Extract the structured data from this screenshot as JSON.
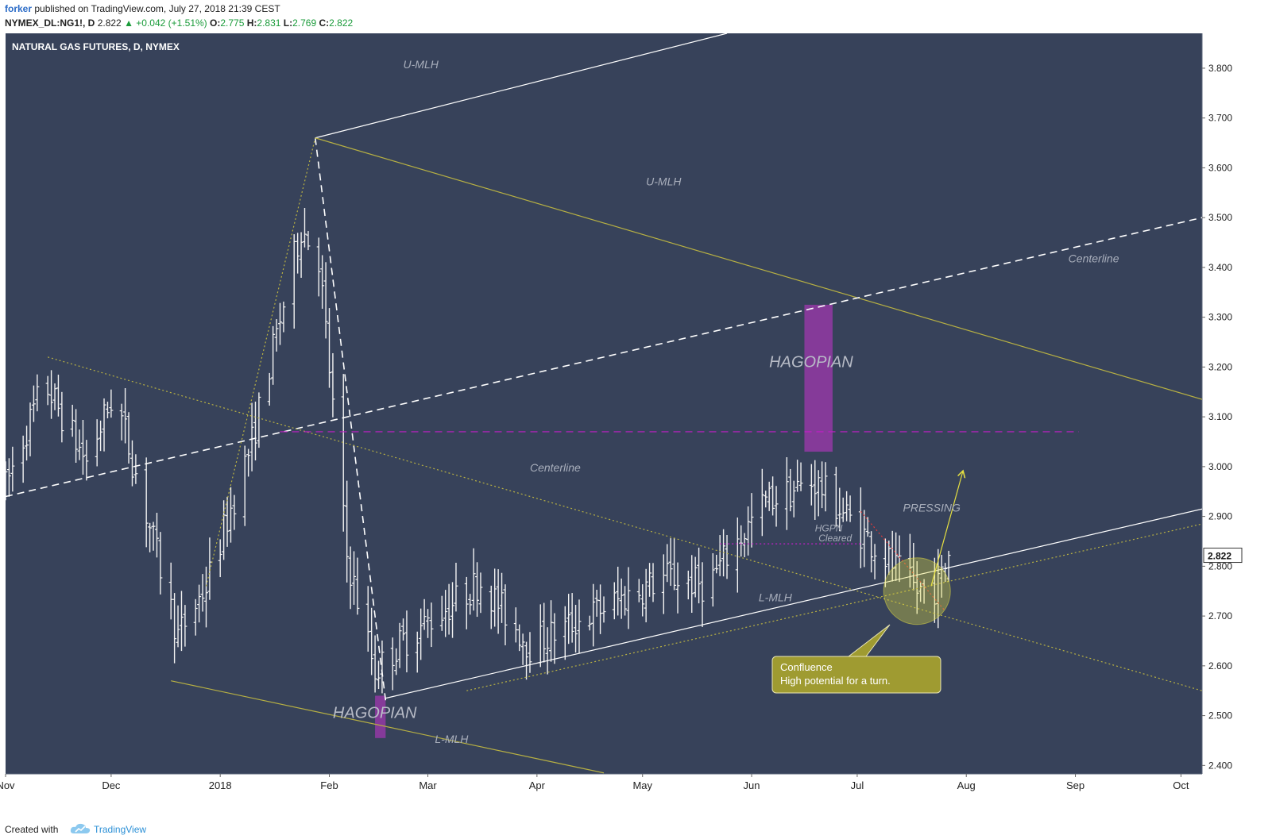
{
  "header": {
    "author": "forker",
    "published": "published on TradingView.com, July 27, 2018 21:39 CEST",
    "symbol": "NYMEX_DL:NG1!, D",
    "last": "2.822",
    "change": "▲ +0.042 (+1.51%)",
    "open_label": "O:",
    "open": "2.775",
    "high_label": "H:",
    "high": "2.831",
    "low_label": "L:",
    "low": "2.769",
    "close_label": "C:",
    "close": "2.822"
  },
  "footer": {
    "created_with": "Created with",
    "brand": "TradingView"
  },
  "colors": {
    "background": "#37425a",
    "bars": "#f2f2f2",
    "olive": "#b7b043",
    "purple": "#8e3aa0",
    "magenta": "#c21fc8",
    "red": "#e03a3a",
    "yellow": "#e6e041",
    "callout": "#9f9b31"
  },
  "chart_data": {
    "type": "ohlc",
    "title": "NATURAL GAS FUTURES, D, NYMEX",
    "x_ticks": [
      "Nov",
      "Dec",
      "2018",
      "Feb",
      "Mar",
      "Apr",
      "May",
      "Jun",
      "Jul",
      "Aug",
      "Sep",
      "Oct"
    ],
    "x_tick_dates": [
      "2017-11-01",
      "2017-12-01",
      "2018-01-01",
      "2018-02-01",
      "2018-03-01",
      "2018-04-01",
      "2018-05-01",
      "2018-06-01",
      "2018-07-01",
      "2018-08-01",
      "2018-09-01",
      "2018-10-01"
    ],
    "x_range": [
      "2017-11-01",
      "2018-10-07"
    ],
    "y_ticks": [
      "2.400",
      "2.500",
      "2.600",
      "2.700",
      "2.800",
      "2.900",
      "3.000",
      "3.100",
      "3.200",
      "3.300",
      "3.400",
      "3.500",
      "3.600",
      "3.700",
      "3.800"
    ],
    "ylim": [
      2.383,
      3.87
    ],
    "last_price_label": "2.822",
    "grid": false,
    "anchors": [
      {
        "date": "2017-11-01",
        "price": 2.96
      },
      {
        "date": "2017-11-12",
        "price": 3.17
      },
      {
        "date": "2017-11-24",
        "price": 3.01
      },
      {
        "date": "2017-12-02",
        "price": 3.15
      },
      {
        "date": "2017-12-20",
        "price": 2.66
      },
      {
        "date": "2017-12-28",
        "price": 2.76
      },
      {
        "date": "2018-01-10",
        "price": 3.05
      },
      {
        "date": "2018-01-24",
        "price": 3.48
      },
      {
        "date": "2018-01-29",
        "price": 3.42
      },
      {
        "date": "2018-02-06",
        "price": 2.82
      },
      {
        "date": "2018-02-14",
        "price": 2.59
      },
      {
        "date": "2018-02-22",
        "price": 2.65
      },
      {
        "date": "2018-03-16",
        "price": 2.77
      },
      {
        "date": "2018-03-30",
        "price": 2.64
      },
      {
        "date": "2018-04-18",
        "price": 2.71
      },
      {
        "date": "2018-05-08",
        "price": 2.78
      },
      {
        "date": "2018-05-19",
        "price": 2.76
      },
      {
        "date": "2018-06-05",
        "price": 2.93
      },
      {
        "date": "2018-06-19",
        "price": 2.97
      },
      {
        "date": "2018-07-02",
        "price": 2.87
      },
      {
        "date": "2018-07-18",
        "price": 2.75
      },
      {
        "date": "2018-07-24",
        "price": 2.76
      },
      {
        "date": "2018-07-27",
        "price": 2.822
      }
    ],
    "lines": [
      {
        "style": "solid",
        "color": "white",
        "from": {
          "date": "2018-01-28",
          "price": 3.66
        },
        "to": {
          "date": "2018-05-25",
          "price": 3.87
        }
      },
      {
        "style": "solid",
        "color": "olive",
        "from": {
          "date": "2018-01-28",
          "price": 3.66
        },
        "to": {
          "date": "2018-10-07",
          "price": 3.135
        }
      },
      {
        "style": "dashed",
        "color": "white",
        "from": {
          "date": "2017-11-01",
          "price": 2.94
        },
        "to": {
          "date": "2018-10-07",
          "price": 3.5
        }
      },
      {
        "style": "dashed",
        "color": "white",
        "from": {
          "date": "2018-01-28",
          "price": 3.66
        },
        "to": {
          "date": "2018-02-17",
          "price": 2.53
        }
      },
      {
        "style": "dotted",
        "color": "olive",
        "from": {
          "date": "2017-11-13",
          "price": 3.22
        },
        "to": {
          "date": "2018-10-07",
          "price": 2.55
        }
      },
      {
        "style": "dotted",
        "color": "olive",
        "from": {
          "date": "2017-12-28",
          "price": 2.76
        },
        "to": {
          "date": "2018-01-28",
          "price": 3.66
        }
      },
      {
        "style": "solid",
        "color": "olive",
        "from": {
          "date": "2017-12-18",
          "price": 2.57
        },
        "to": {
          "date": "2018-04-20",
          "price": 2.385
        }
      },
      {
        "style": "solid",
        "color": "white",
        "from": {
          "date": "2018-02-17",
          "price": 2.535
        },
        "to": {
          "date": "2018-10-07",
          "price": 2.915
        }
      },
      {
        "style": "dotted",
        "color": "olive",
        "from": {
          "date": "2018-03-12",
          "price": 2.55
        },
        "to": {
          "date": "2018-10-07",
          "price": 2.885
        }
      },
      {
        "style": "dashed",
        "color": "magenta",
        "from": {
          "date": "2018-01-18",
          "price": 3.07
        },
        "to": {
          "date": "2018-09-02",
          "price": 3.07
        }
      },
      {
        "style": "dotted",
        "color": "magenta",
        "from": {
          "date": "2018-05-23",
          "price": 2.845
        },
        "to": {
          "date": "2018-07-02",
          "price": 2.845
        }
      },
      {
        "style": "dotted",
        "color": "red",
        "from": {
          "date": "2018-07-02",
          "price": 2.91
        },
        "to": {
          "date": "2018-07-26",
          "price": 2.71
        }
      },
      {
        "style": "arrow",
        "color": "yellow",
        "from": {
          "date": "2018-07-22",
          "price": 2.76
        },
        "to": {
          "date": "2018-07-31",
          "price": 2.99
        }
      }
    ],
    "zones": [
      {
        "color": "purple",
        "from": "2018-06-16",
        "to": "2018-06-24",
        "low": 3.03,
        "high": 3.325
      },
      {
        "color": "purple",
        "from": "2018-02-14",
        "to": "2018-02-17",
        "low": 2.455,
        "high": 2.54
      }
    ],
    "circle": {
      "date": "2018-07-18",
      "price": 2.75
    },
    "annotations": [
      {
        "text": "U-MLH",
        "date": "2018-02-22",
        "price": 3.8
      },
      {
        "text": "U-MLH",
        "date": "2018-05-02",
        "price": 3.565
      },
      {
        "text": "Centerline",
        "date": "2018-08-30",
        "price": 3.41
      },
      {
        "text": "Centerline",
        "date": "2018-03-30",
        "price": 2.99
      },
      {
        "text": "HAGOPIAN",
        "date": "2018-06-06",
        "price": 3.2
      },
      {
        "text": "HAGOPIAN",
        "date": "2018-02-02",
        "price": 2.495
      },
      {
        "text": "PRESSING",
        "date": "2018-07-14",
        "price": 2.91
      },
      {
        "text": "HGPN",
        "date": "2018-06-19",
        "price": 2.87
      },
      {
        "text": "Cleared",
        "date": "2018-06-20",
        "price": 2.85
      },
      {
        "text": "L-MLH",
        "date": "2018-06-03",
        "price": 2.73
      },
      {
        "text": "L-MLH",
        "date": "2018-03-03",
        "price": 2.445
      }
    ],
    "callout": {
      "line1": "Confluence",
      "line2": "High potential for a turn."
    }
  }
}
